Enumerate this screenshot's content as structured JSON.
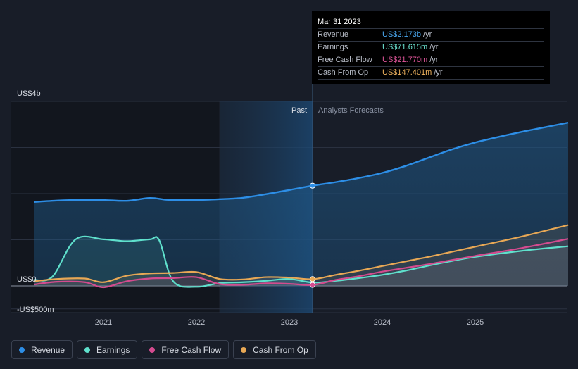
{
  "tooltip": {
    "date": "Mar 31 2023",
    "rows": [
      {
        "label": "Revenue",
        "value": "US$2.173b",
        "unit": "/yr",
        "color": "#4aa8f0"
      },
      {
        "label": "Earnings",
        "value": "US$71.615m",
        "unit": "/yr",
        "color": "#6ee8d6"
      },
      {
        "label": "Free Cash Flow",
        "value": "US$21.770m",
        "unit": "/yr",
        "color": "#e0559a"
      },
      {
        "label": "Cash From Op",
        "value": "US$147.401m",
        "unit": "/yr",
        "color": "#f0b35e"
      }
    ]
  },
  "legend": [
    {
      "label": "Revenue",
      "color": "#2d8ee6"
    },
    {
      "label": "Earnings",
      "color": "#5fe0cc"
    },
    {
      "label": "Free Cash Flow",
      "color": "#d44b8f"
    },
    {
      "label": "Cash From Op",
      "color": "#e8a855"
    }
  ],
  "chart_data": {
    "type": "line",
    "title": "",
    "xlabel": "",
    "ylabel": "",
    "y_unit": "US$ m",
    "ylim": [
      -500,
      4000
    ],
    "yticks": [
      -500,
      0,
      1000,
      2000,
      3000,
      4000
    ],
    "ytick_labels": [
      {
        "value": 4000,
        "label": "US$4b"
      },
      {
        "value": 0,
        "label": "US$0"
      },
      {
        "value": -500,
        "label": "-US$500m"
      }
    ],
    "xlim": [
      2020.2,
      2026.0
    ],
    "xticks": [
      {
        "value": 2021.0,
        "label": "2021"
      },
      {
        "value": 2022.0,
        "label": "2022"
      },
      {
        "value": 2023.0,
        "label": "2023"
      },
      {
        "value": 2024.0,
        "label": "2024"
      },
      {
        "value": 2025.0,
        "label": "2025"
      }
    ],
    "past_label": "Past",
    "forecast_label": "Analysts Forecasts",
    "past_shade_start": 2022.25,
    "divider_x": 2023.25,
    "series": [
      {
        "name": "Revenue",
        "color": "#2d8ee6",
        "points": [
          [
            2020.25,
            1820
          ],
          [
            2020.5,
            1850
          ],
          [
            2020.75,
            1865
          ],
          [
            2021.0,
            1862
          ],
          [
            2021.25,
            1845
          ],
          [
            2021.5,
            1905
          ],
          [
            2021.7,
            1865
          ],
          [
            2022.0,
            1862
          ],
          [
            2022.25,
            1880
          ],
          [
            2022.5,
            1910
          ],
          [
            2022.75,
            1990
          ],
          [
            2023.0,
            2080
          ],
          [
            2023.25,
            2173
          ],
          [
            2023.5,
            2250
          ],
          [
            2023.75,
            2340
          ],
          [
            2024.0,
            2450
          ],
          [
            2024.25,
            2600
          ],
          [
            2024.5,
            2780
          ],
          [
            2024.75,
            2960
          ],
          [
            2025.0,
            3110
          ],
          [
            2025.25,
            3230
          ],
          [
            2025.5,
            3340
          ],
          [
            2025.75,
            3440
          ],
          [
            2026.0,
            3540
          ]
        ]
      },
      {
        "name": "Earnings",
        "color": "#5fe0cc",
        "points": [
          [
            2020.25,
            130
          ],
          [
            2020.45,
            200
          ],
          [
            2020.7,
            1010
          ],
          [
            2021.0,
            1010
          ],
          [
            2021.25,
            970
          ],
          [
            2021.5,
            1010
          ],
          [
            2021.6,
            990
          ],
          [
            2021.75,
            100
          ],
          [
            2022.0,
            -20
          ],
          [
            2022.25,
            60
          ],
          [
            2022.5,
            80
          ],
          [
            2022.75,
            110
          ],
          [
            2023.0,
            150
          ],
          [
            2023.25,
            72
          ],
          [
            2023.5,
            110
          ],
          [
            2023.75,
            170
          ],
          [
            2024.0,
            240
          ],
          [
            2024.25,
            330
          ],
          [
            2024.5,
            440
          ],
          [
            2024.75,
            540
          ],
          [
            2025.0,
            630
          ],
          [
            2025.5,
            760
          ],
          [
            2026.0,
            860
          ]
        ]
      },
      {
        "name": "Free Cash Flow",
        "color": "#d44b8f",
        "points": [
          [
            2020.25,
            30
          ],
          [
            2020.5,
            90
          ],
          [
            2020.8,
            80
          ],
          [
            2021.0,
            -30
          ],
          [
            2021.25,
            100
          ],
          [
            2021.5,
            160
          ],
          [
            2021.75,
            170
          ],
          [
            2022.0,
            190
          ],
          [
            2022.25,
            40
          ],
          [
            2022.5,
            25
          ],
          [
            2022.75,
            55
          ],
          [
            2023.0,
            45
          ],
          [
            2023.25,
            22
          ],
          [
            2023.5,
            130
          ],
          [
            2023.75,
            210
          ],
          [
            2024.0,
            310
          ],
          [
            2024.25,
            390
          ],
          [
            2024.5,
            470
          ],
          [
            2024.75,
            560
          ],
          [
            2025.0,
            650
          ],
          [
            2025.5,
            820
          ],
          [
            2026.0,
            1020
          ]
        ]
      },
      {
        "name": "Cash From Op",
        "color": "#e8a855",
        "points": [
          [
            2020.25,
            100
          ],
          [
            2020.5,
            150
          ],
          [
            2020.8,
            160
          ],
          [
            2021.0,
            80
          ],
          [
            2021.25,
            220
          ],
          [
            2021.5,
            270
          ],
          [
            2021.75,
            280
          ],
          [
            2022.0,
            300
          ],
          [
            2022.25,
            150
          ],
          [
            2022.5,
            140
          ],
          [
            2022.75,
            190
          ],
          [
            2023.0,
            180
          ],
          [
            2023.25,
            147
          ],
          [
            2023.5,
            240
          ],
          [
            2023.75,
            330
          ],
          [
            2024.0,
            430
          ],
          [
            2024.25,
            530
          ],
          [
            2024.5,
            630
          ],
          [
            2024.75,
            740
          ],
          [
            2025.0,
            850
          ],
          [
            2025.5,
            1070
          ],
          [
            2026.0,
            1320
          ]
        ]
      }
    ],
    "markers": [
      {
        "series": "Revenue",
        "x": 2023.25,
        "y": 2173
      },
      {
        "series": "Cash From Op",
        "x": 2023.25,
        "y": 147
      },
      {
        "series": "Free Cash Flow",
        "x": 2023.25,
        "y": 22
      }
    ]
  }
}
